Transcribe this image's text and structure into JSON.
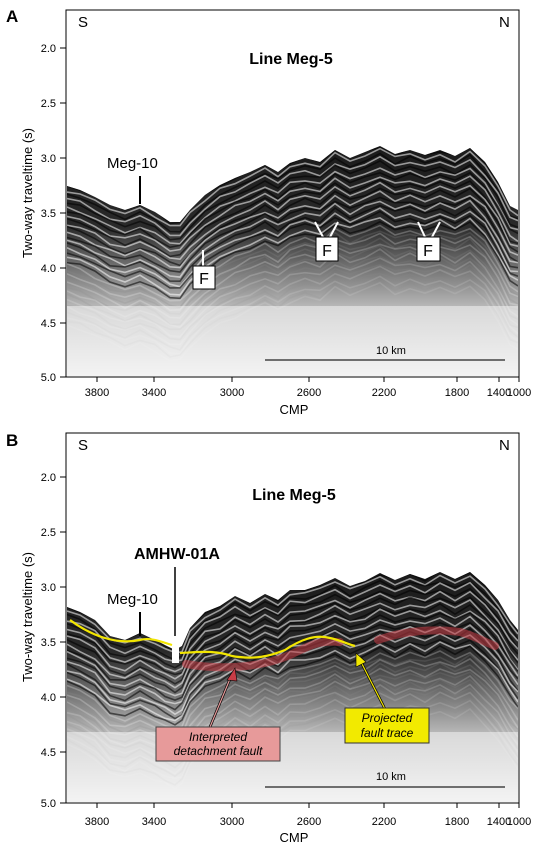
{
  "figure": {
    "panels": [
      {
        "letter": "A",
        "title": "Line Meg-5",
        "left_dir": "S",
        "right_dir": "N",
        "ylabel": "Two-way traveltime (s)",
        "xlabel": "CMP",
        "y_ticks": [
          "2.0",
          "2.5",
          "3.0",
          "3.5",
          "4.0",
          "4.5",
          "5.0"
        ],
        "x_ticks": [
          "3800",
          "3400",
          "3000",
          "2600",
          "2200",
          "1800",
          "1400",
          "1000"
        ],
        "scale_label": "10 km",
        "site_label": "Meg-10",
        "fault_markers": [
          "F",
          "F",
          "F"
        ]
      },
      {
        "letter": "B",
        "title": "Line Meg-5",
        "left_dir": "S",
        "right_dir": "N",
        "ylabel": "Two-way traveltime (s)",
        "xlabel": "CMP",
        "y_ticks": [
          "2.0",
          "2.5",
          "3.0",
          "3.5",
          "4.0",
          "4.5",
          "5.0"
        ],
        "x_ticks": [
          "3800",
          "3400",
          "3000",
          "2600",
          "2200",
          "1800",
          "1400",
          "1000"
        ],
        "scale_label": "10 km",
        "site_label": "Meg-10",
        "hole_label": "AMHW-01A",
        "detachment_label": [
          "Interpreted",
          "detachment fault"
        ],
        "projected_label": [
          "Projected",
          "fault trace"
        ]
      }
    ],
    "colors": {
      "projected_trace": "#f2e600",
      "detachment": "#c83c46",
      "detachment_box": "#e79a9a",
      "projected_box": "#f2ea00"
    }
  }
}
